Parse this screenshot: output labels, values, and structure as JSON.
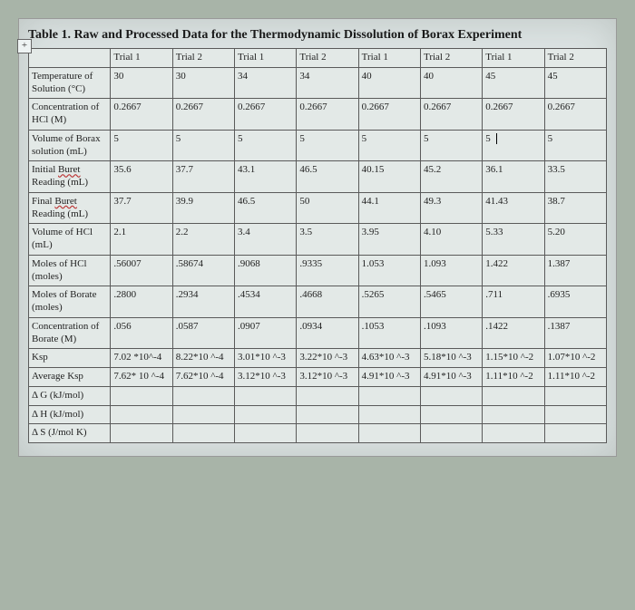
{
  "title": "Table 1. Raw and Processed Data for the Thermodynamic Dissolution of Borax Experiment",
  "expand_icon": "+",
  "headers": [
    "",
    "Trial 1",
    "Trial 2",
    "Trial 1",
    "Trial 2",
    "Trial 1",
    "Trial 2",
    "Trial 1",
    "Trial 2"
  ],
  "rows": [
    {
      "label": "Temperature of Solution (°C)",
      "cells": [
        "30",
        "30",
        "34",
        "34",
        "40",
        "40",
        "45",
        "45"
      ]
    },
    {
      "label": "Concentration of HCl (M)",
      "cells": [
        "0.2667",
        "0.2667",
        "0.2667",
        "0.2667",
        "0.2667",
        "0.2667",
        "0.2667",
        "0.2667"
      ]
    },
    {
      "label": "Volume of Borax solution (mL)",
      "cells": [
        "5",
        "5",
        "5",
        "5",
        "5",
        "5",
        "5",
        "5"
      ],
      "cursor": 7
    },
    {
      "label": "Initial Buret Reading (mL)",
      "wavy": true,
      "cells": [
        "35.6",
        "37.7",
        "43.1",
        "46.5",
        "40.15",
        "45.2",
        "36.1",
        "33.5"
      ]
    },
    {
      "label": "Final Buret Reading (mL)",
      "wavy": true,
      "cells": [
        "37.7",
        "39.9",
        "46.5",
        "50",
        "44.1",
        "49.3",
        "41.43",
        "38.7"
      ]
    },
    {
      "label": "Volume of HCl (mL)",
      "cells": [
        "2.1",
        "2.2",
        "3.4",
        "3.5",
        "3.95",
        "4.10",
        "5.33",
        "5.20"
      ]
    },
    {
      "label": "Moles of HCl (moles)",
      "cells": [
        ".56007",
        ".58674",
        ".9068",
        ".9335",
        "1.053",
        "1.093",
        "1.422",
        "1.387"
      ]
    },
    {
      "label": "Moles of Borate (moles)",
      "cells": [
        ".2800",
        ".2934",
        ".4534",
        ".4668",
        ".5265",
        ".5465",
        ".711",
        ".6935"
      ]
    },
    {
      "label": "Concentration of Borate (M)",
      "cells": [
        ".056",
        ".0587",
        ".0907",
        ".0934",
        ".1053",
        ".1093",
        ".1422",
        ".1387"
      ]
    },
    {
      "label": "Ksp",
      "cells": [
        "7.02 *10^-4",
        "8.22*10 ^-4",
        "3.01*10 ^-3",
        "3.22*10 ^-3",
        "4.63*10 ^-3",
        "5.18*10 ^-3",
        "1.15*10 ^-2",
        "1.07*10 ^-2"
      ]
    },
    {
      "label": "Average Ksp",
      "cells": [
        "7.62* 10 ^-4",
        "7.62*10 ^-4",
        "3.12*10 ^-3",
        "3.12*10 ^-3",
        "4.91*10 ^-3",
        "4.91*10 ^-3",
        "1.11*10 ^-2",
        "1.11*10 ^-2"
      ]
    },
    {
      "label": "Δ G (kJ/mol)",
      "cells": [
        "",
        "",
        "",
        "",
        "",
        "",
        "",
        ""
      ]
    },
    {
      "label": "Δ H (kJ/mol)",
      "cells": [
        "",
        "",
        "",
        "",
        "",
        "",
        "",
        ""
      ]
    },
    {
      "label": "Δ S (J/mol K)",
      "cells": [
        "",
        "",
        "",
        "",
        "",
        "",
        "",
        ""
      ]
    }
  ],
  "style": {
    "page_bg": "#dce3e3",
    "body_bg": "#a8b4a8",
    "table_bg": "#e3e9e7",
    "border_color": "#5a5a5a",
    "font_family": "Times New Roman",
    "title_fontsize": 14,
    "cell_fontsize": 11
  }
}
